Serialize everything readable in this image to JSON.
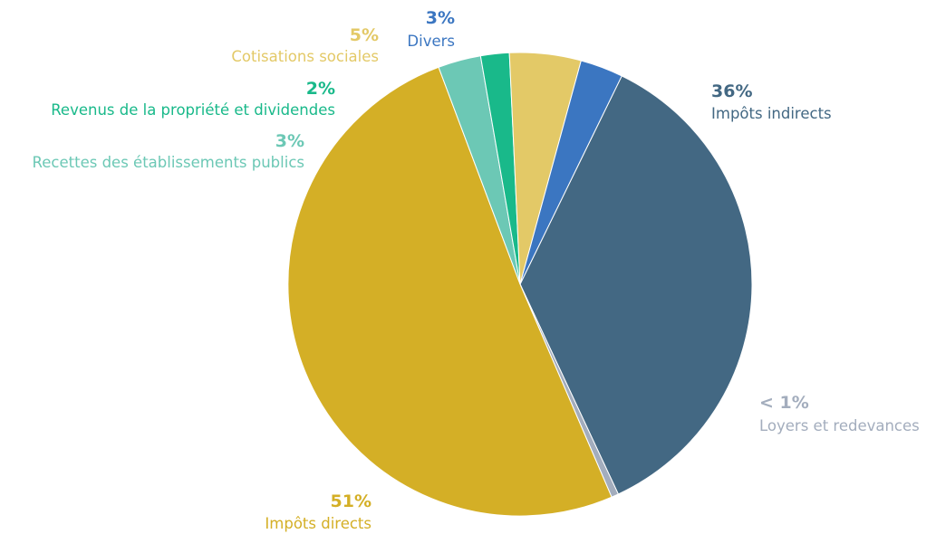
{
  "chart_data": {
    "type": "pie",
    "slices": [
      {
        "label": "Impôts indirects",
        "value": 36,
        "value_label": "36%",
        "color": "#436883"
      },
      {
        "label": "Loyers et redevances",
        "value": 0.5,
        "value_label": "< 1%",
        "color": "#a3adbd"
      },
      {
        "label": "Impôts directs",
        "value": 51,
        "value_label": "51%",
        "color": "#d4af26"
      },
      {
        "label": "Recettes des établissements publics",
        "value": 3,
        "value_label": "3%",
        "color": "#6cc8b5"
      },
      {
        "label": "Revenus de la propriété et dividendes",
        "value": 2,
        "value_label": "2%",
        "color": "#19b98a"
      },
      {
        "label": "Cotisations sociales",
        "value": 5,
        "value_label": "5%",
        "color": "#e3c967"
      },
      {
        "label": "Divers",
        "value": 3,
        "value_label": "3%",
        "color": "#3b76c1"
      }
    ]
  }
}
